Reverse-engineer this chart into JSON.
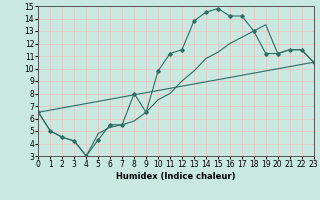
{
  "xlabel": "Humidex (Indice chaleur)",
  "bg_color": "#c8e8e0",
  "grid_color": "#e8c8c8",
  "line_color": "#2e6e62",
  "xlim": [
    0,
    23
  ],
  "ylim": [
    3,
    15
  ],
  "xticks": [
    0,
    1,
    2,
    3,
    4,
    5,
    6,
    7,
    8,
    9,
    10,
    11,
    12,
    13,
    14,
    15,
    16,
    17,
    18,
    19,
    20,
    21,
    22,
    23
  ],
  "yticks": [
    3,
    4,
    5,
    6,
    7,
    8,
    9,
    10,
    11,
    12,
    13,
    14,
    15
  ],
  "line1_x": [
    0,
    1,
    2,
    3,
    4,
    5,
    6,
    7,
    8,
    9,
    10,
    11,
    12,
    13,
    14,
    15,
    16,
    17,
    18,
    19,
    20,
    21,
    22,
    23
  ],
  "line1_y": [
    6.5,
    5.0,
    4.5,
    4.2,
    3.0,
    4.3,
    5.5,
    5.5,
    8.0,
    6.5,
    9.8,
    11.2,
    11.5,
    13.8,
    14.5,
    14.8,
    14.2,
    14.2,
    13.0,
    11.2,
    11.2,
    11.5,
    11.5,
    10.5
  ],
  "line2_x": [
    0,
    23
  ],
  "line2_y": [
    6.5,
    10.5
  ],
  "line3_x": [
    0,
    1,
    2,
    3,
    4,
    5,
    6,
    7,
    8,
    9,
    10,
    11,
    12,
    13,
    14,
    15,
    16,
    17,
    18,
    19,
    20,
    21,
    22,
    23
  ],
  "line3_y": [
    6.5,
    5.0,
    4.5,
    4.2,
    3.0,
    4.8,
    5.3,
    5.5,
    5.8,
    6.5,
    7.5,
    8.0,
    9.0,
    9.8,
    10.8,
    11.3,
    12.0,
    12.5,
    13.0,
    13.5,
    11.2,
    11.5,
    11.5,
    10.5
  ],
  "marker": "D",
  "marker_size": 1.8,
  "lw": 0.8,
  "tick_fontsize": 5.5,
  "xlabel_fontsize": 6.0
}
